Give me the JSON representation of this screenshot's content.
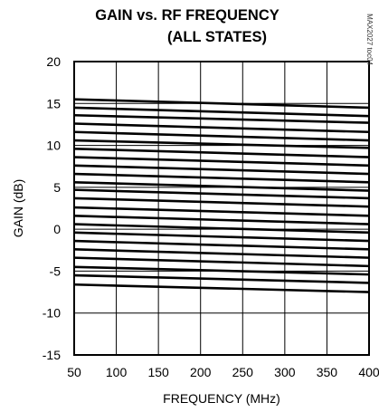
{
  "chart_data": {
    "type": "line",
    "title": "GAIN vs. RF FREQUENCY",
    "subtitle": "(ALL STATES)",
    "xlabel": "FREQUENCY (MHz)",
    "ylabel": "GAIN (dB)",
    "xlim": [
      50,
      400
    ],
    "ylim": [
      -15,
      20
    ],
    "xticks": [
      "50",
      "100",
      "150",
      "200",
      "250",
      "300",
      "350",
      "400"
    ],
    "yticks": [
      "20",
      "15",
      "10",
      "5",
      "0",
      "-5",
      "-10",
      "-15"
    ],
    "grid": true,
    "watermark": "MAX2027 toc04",
    "line_color": "#000000",
    "x": [
      50,
      400
    ],
    "series": [
      {
        "values": [
          15.5,
          14.5
        ]
      },
      {
        "values": [
          14.5,
          13.5
        ]
      },
      {
        "values": [
          13.6,
          12.7
        ]
      },
      {
        "values": [
          12.6,
          11.6
        ]
      },
      {
        "values": [
          11.6,
          10.6
        ]
      },
      {
        "values": [
          10.6,
          9.7
        ]
      },
      {
        "values": [
          9.6,
          8.6
        ]
      },
      {
        "values": [
          8.6,
          7.6
        ]
      },
      {
        "values": [
          7.6,
          6.6
        ]
      },
      {
        "values": [
          6.6,
          5.6
        ]
      },
      {
        "values": [
          5.6,
          4.6
        ]
      },
      {
        "values": [
          4.7,
          3.7
        ]
      },
      {
        "values": [
          3.7,
          2.7
        ]
      },
      {
        "values": [
          2.6,
          1.6
        ]
      },
      {
        "values": [
          1.6,
          0.6
        ]
      },
      {
        "values": [
          0.6,
          -0.4
        ]
      },
      {
        "values": [
          -0.4,
          -1.4
        ]
      },
      {
        "values": [
          -1.4,
          -2.4
        ]
      },
      {
        "values": [
          -2.4,
          -3.4
        ]
      },
      {
        "values": [
          -3.4,
          -4.4
        ]
      },
      {
        "values": [
          -4.5,
          -5.4
        ]
      },
      {
        "values": [
          -5.5,
          -6.4
        ]
      },
      {
        "values": [
          -6.6,
          -7.5
        ]
      }
    ]
  }
}
